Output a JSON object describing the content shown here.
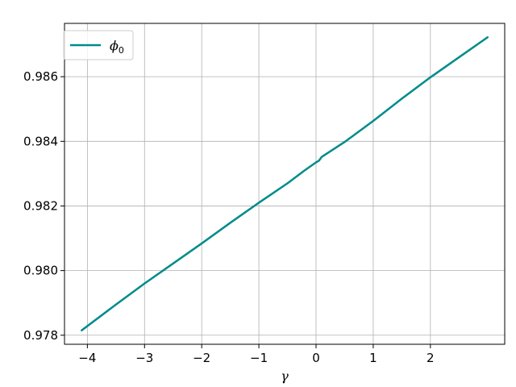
{
  "chart_data": {
    "type": "line",
    "xlabel": "γ",
    "ylabel": "",
    "title": "",
    "xlim": [
      -4.4,
      3.3
    ],
    "ylim": [
      0.97772,
      0.98765
    ],
    "grid": true,
    "legend_position": "top-left",
    "xticks": [
      -4,
      -3,
      -2,
      -1,
      0,
      1,
      2
    ],
    "xtick_labels": [
      "−4",
      "−3",
      "−2",
      "−1",
      "0",
      "1",
      "2"
    ],
    "yticks": [
      0.978,
      0.98,
      0.982,
      0.984,
      0.986
    ],
    "ytick_labels": [
      "0.978",
      "0.980",
      "0.982",
      "0.984",
      "0.986"
    ],
    "series": [
      {
        "name": "ϕ0",
        "legend_symbol": "ϕ",
        "legend_subscript": "0",
        "color": "#008b8b",
        "x": [
          -4.1,
          -3.5,
          -3.0,
          -2.5,
          -2.0,
          -1.5,
          -1.0,
          -0.5,
          -0.2,
          0.0,
          0.05,
          0.1,
          0.5,
          1.0,
          1.5,
          2.0,
          2.5,
          3.0
        ],
        "y": [
          0.97815,
          0.97895,
          0.9796,
          0.98022,
          0.98084,
          0.98148,
          0.9821,
          0.9827,
          0.9831,
          0.98335,
          0.9834,
          0.98352,
          0.98398,
          0.98463,
          0.98532,
          0.98598,
          0.9866,
          0.98722
        ]
      }
    ]
  }
}
